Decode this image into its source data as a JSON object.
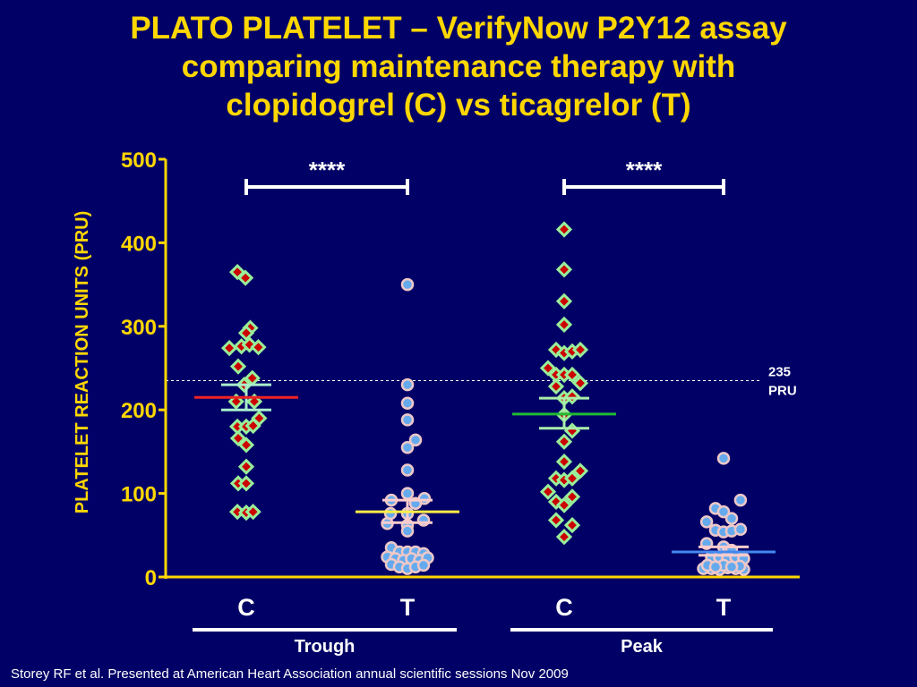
{
  "title_lines": [
    "PLATO PLATELET – VerifyNow P2Y12 assay",
    "comparing maintenance therapy with",
    "clopidogrel (C) vs ticagrelor (T)"
  ],
  "footer": "Storey RF et al. Presented at American Heart Association  annual scientific sessions Nov 2009",
  "colors": {
    "background": "#000066",
    "axis": "#ffd700",
    "diamond_fill": "#cc0000",
    "diamond_border": "#99ee99",
    "circle_fill": "#66aaee",
    "circle_border": "#eec8c8",
    "trough_c_median": "#ee2222",
    "trough_t_median": "#ffee44",
    "peak_c_median": "#22bb33",
    "peak_t_median": "#4488ee"
  },
  "chart_data": {
    "type": "scatter",
    "title": "PLATO PLATELET – VerifyNow P2Y12 assay comparing maintenance therapy with clopidogrel (C) vs ticagrelor (T)",
    "ylabel": "PLATELET REACTION UNITS (PRU)",
    "ylim": [
      0,
      500
    ],
    "yticks": [
      0,
      100,
      200,
      300,
      400,
      500
    ],
    "categories": [
      "C",
      "T",
      "C",
      "T"
    ],
    "groups": [
      {
        "label": "Trough",
        "categories": [
          "C",
          "T"
        ]
      },
      {
        "label": "Peak",
        "categories": [
          "C",
          "T"
        ]
      }
    ],
    "reference_line": {
      "value": 235,
      "label_lines": [
        "235",
        "PRU"
      ]
    },
    "significance": [
      {
        "from": 0,
        "to": 1,
        "label": "****"
      },
      {
        "from": 2,
        "to": 3,
        "label": "****"
      }
    ],
    "series": [
      {
        "group": "Trough",
        "category": "C",
        "marker": "diamond",
        "median": 215,
        "iqr": [
          200,
          230
        ],
        "points": [
          [
            -0.22,
            365
          ],
          [
            -0.02,
            358
          ],
          [
            0.1,
            298
          ],
          [
            0.0,
            292
          ],
          [
            -0.42,
            274
          ],
          [
            -0.12,
            276
          ],
          [
            0.08,
            278
          ],
          [
            0.3,
            275
          ],
          [
            -0.2,
            252
          ],
          [
            0.15,
            238
          ],
          [
            -0.05,
            230
          ],
          [
            -0.25,
            210
          ],
          [
            0.2,
            210
          ],
          [
            0.32,
            190
          ],
          [
            -0.22,
            180
          ],
          [
            0.0,
            180
          ],
          [
            0.17,
            181
          ],
          [
            -0.2,
            166
          ],
          [
            0.0,
            158
          ],
          [
            0.0,
            132
          ],
          [
            -0.2,
            112
          ],
          [
            0.0,
            112
          ],
          [
            -0.22,
            78
          ],
          [
            0.0,
            77
          ],
          [
            0.17,
            78
          ]
        ]
      },
      {
        "group": "Trough",
        "category": "T",
        "marker": "circle",
        "median": 78,
        "iqr": [
          65,
          92
        ],
        "points": [
          [
            0.0,
            350
          ],
          [
            0.0,
            230
          ],
          [
            0.0,
            208
          ],
          [
            0.0,
            188
          ],
          [
            0.2,
            164
          ],
          [
            0.0,
            155
          ],
          [
            0.0,
            128
          ],
          [
            0.0,
            100
          ],
          [
            -0.4,
            92
          ],
          [
            0.2,
            88
          ],
          [
            0.42,
            94
          ],
          [
            -0.42,
            76
          ],
          [
            0.0,
            76
          ],
          [
            -0.5,
            64
          ],
          [
            0.0,
            62
          ],
          [
            0.4,
            68
          ],
          [
            0.0,
            55
          ],
          [
            -0.4,
            35
          ],
          [
            -0.2,
            30
          ],
          [
            0.0,
            30
          ],
          [
            0.2,
            30
          ],
          [
            0.4,
            28
          ],
          [
            -0.5,
            24
          ],
          [
            -0.3,
            22
          ],
          [
            -0.1,
            20
          ],
          [
            0.1,
            22
          ],
          [
            0.3,
            20
          ],
          [
            0.5,
            23
          ],
          [
            -0.4,
            15
          ],
          [
            -0.2,
            12
          ],
          [
            0.0,
            10
          ],
          [
            0.2,
            12
          ],
          [
            0.4,
            14
          ]
        ]
      },
      {
        "group": "Peak",
        "category": "C",
        "marker": "diamond",
        "median": 195,
        "iqr": [
          178,
          214
        ],
        "points": [
          [
            0.0,
            416
          ],
          [
            0.0,
            368
          ],
          [
            0.0,
            330
          ],
          [
            0.0,
            302
          ],
          [
            -0.2,
            272
          ],
          [
            0.0,
            268
          ],
          [
            0.2,
            270
          ],
          [
            0.4,
            272
          ],
          [
            -0.4,
            250
          ],
          [
            -0.2,
            242
          ],
          [
            0.0,
            242
          ],
          [
            0.2,
            242
          ],
          [
            0.4,
            232
          ],
          [
            -0.2,
            228
          ],
          [
            0.0,
            214
          ],
          [
            0.2,
            216
          ],
          [
            0.0,
            194
          ],
          [
            0.2,
            175
          ],
          [
            0.0,
            162
          ],
          [
            0.0,
            138
          ],
          [
            0.4,
            127
          ],
          [
            -0.2,
            118
          ],
          [
            0.0,
            116
          ],
          [
            0.2,
            118
          ],
          [
            -0.4,
            102
          ],
          [
            0.2,
            96
          ],
          [
            -0.2,
            90
          ],
          [
            0.0,
            86
          ],
          [
            -0.2,
            68
          ],
          [
            0.2,
            62
          ],
          [
            0.0,
            48
          ]
        ]
      },
      {
        "group": "Peak",
        "category": "T",
        "marker": "circle",
        "median": 30,
        "iqr": [
          26,
          36
        ],
        "points": [
          [
            0.0,
            142
          ],
          [
            0.42,
            92
          ],
          [
            -0.2,
            82
          ],
          [
            0.0,
            78
          ],
          [
            0.2,
            70
          ],
          [
            -0.42,
            66
          ],
          [
            -0.2,
            56
          ],
          [
            0.0,
            54
          ],
          [
            0.2,
            55
          ],
          [
            0.42,
            57
          ],
          [
            -0.42,
            40
          ],
          [
            0.0,
            36
          ],
          [
            0.2,
            32
          ],
          [
            -0.3,
            24
          ],
          [
            -0.1,
            24
          ],
          [
            0.1,
            22
          ],
          [
            0.3,
            24
          ],
          [
            0.5,
            22
          ],
          [
            -0.5,
            10
          ],
          [
            -0.3,
            10
          ],
          [
            -0.1,
            9
          ],
          [
            0.1,
            11
          ],
          [
            0.3,
            10
          ],
          [
            0.5,
            9
          ],
          [
            -0.4,
            14
          ],
          [
            0.0,
            14
          ],
          [
            0.4,
            13
          ],
          [
            -0.2,
            12
          ],
          [
            0.2,
            12
          ]
        ]
      }
    ]
  }
}
